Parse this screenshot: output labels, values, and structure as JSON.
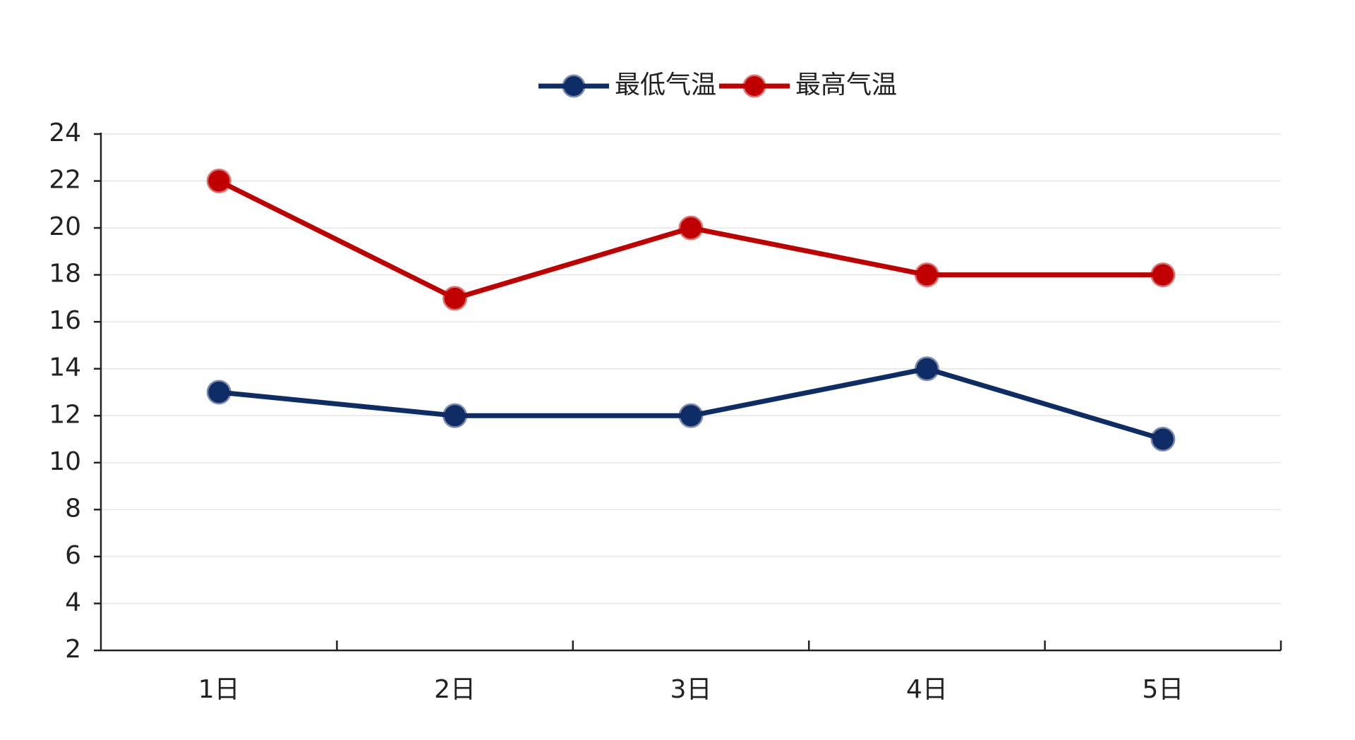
{
  "chart_data": {
    "type": "line",
    "categories": [
      "1日",
      "2日",
      "3日",
      "4日",
      "5日"
    ],
    "series": [
      {
        "name": "最低气温",
        "color": "#0e2c66",
        "values": [
          13,
          12,
          12,
          14,
          11
        ]
      },
      {
        "name": "最高气温",
        "color": "#c00000",
        "values": [
          22,
          17,
          20,
          18,
          18
        ]
      }
    ],
    "ylim": [
      2,
      24
    ],
    "yticks": [
      2,
      4,
      6,
      8,
      10,
      12,
      14,
      16,
      18,
      20,
      22,
      24
    ],
    "grid": true,
    "legend": "top"
  }
}
